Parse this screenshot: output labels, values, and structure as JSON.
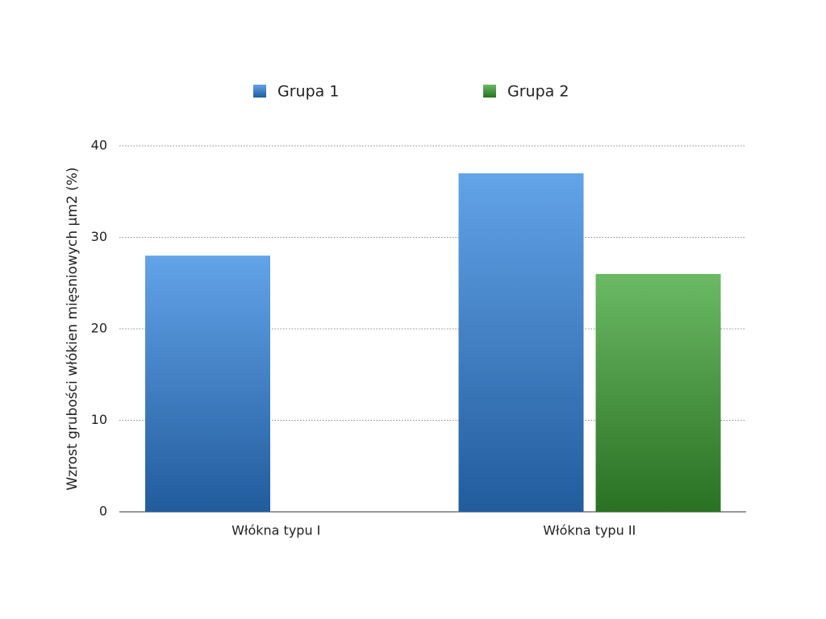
{
  "chart_data": {
    "type": "bar",
    "y_label": "Wzrost grubości włókien mięsniowych µm2 (%)",
    "categories": [
      "Włókna typu I",
      "Włókna typu II"
    ],
    "series": [
      {
        "name": "Grupa 1",
        "color": "#2f84e0",
        "values": [
          28,
          37
        ]
      },
      {
        "name": "Grupa 2",
        "color": "#3aa232",
        "values": [
          null,
          26
        ]
      }
    ],
    "ylim": [
      0,
      40
    ],
    "yticks": [
      0,
      10,
      20,
      30,
      40
    ],
    "grid": true,
    "legend": "top"
  }
}
